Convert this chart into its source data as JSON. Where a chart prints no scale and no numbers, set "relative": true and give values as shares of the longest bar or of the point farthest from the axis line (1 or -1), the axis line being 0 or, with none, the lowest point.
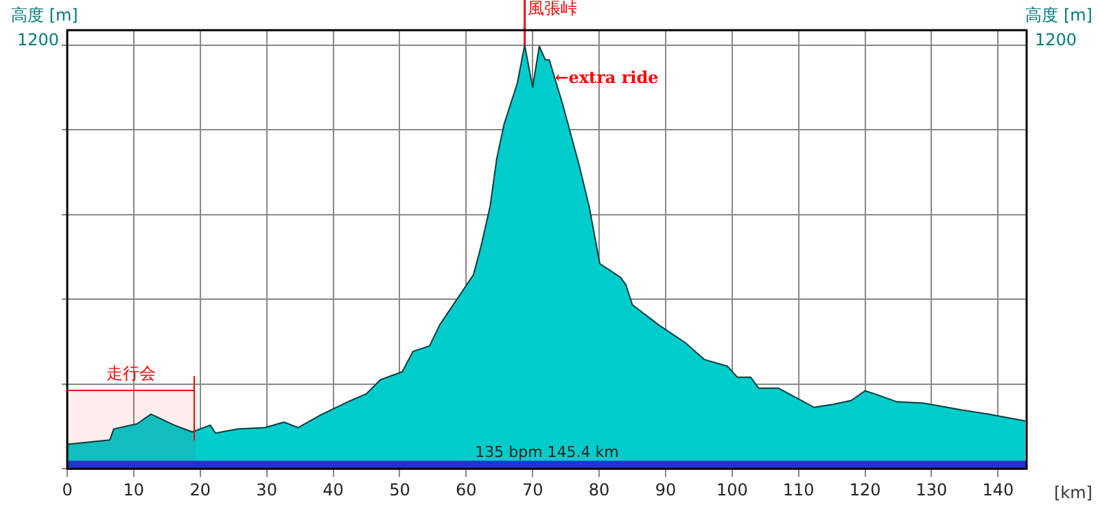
{
  "chart_data": {
    "type": "area",
    "relative": true,
    "ylabel": "高度 [m]",
    "y2label": "高度 [m]",
    "xlabel": "[km]",
    "xlim": [
      0,
      144.3
    ],
    "xticks": [
      0,
      10,
      20,
      30,
      40,
      50,
      60,
      70,
      80,
      90,
      100,
      110,
      120,
      130,
      140
    ],
    "grid": true,
    "legend": false,
    "series": [
      {
        "color": "#00cccc",
        "x": [
          0,
          6.4,
          7.0,
          10.5,
          12.6,
          16.1,
          18.8,
          21.5,
          22.3,
          25.6,
          29.7,
          32.6,
          34.7,
          38.0,
          42.2,
          45.0,
          47.1,
          50.4,
          52.0,
          54.5,
          56.0,
          61.1,
          62.2,
          63.6,
          64.6,
          65.7,
          67.7,
          68.8,
          70.0,
          71.0,
          71.9,
          72.5,
          74.5,
          77.0,
          78.5,
          80.1,
          83.2,
          84.0,
          85.0,
          89.0,
          93.0,
          95.8,
          99.3,
          100.8,
          102.8,
          104.0,
          107.0,
          109.6,
          112.3,
          115.2,
          117.9,
          120.0,
          121.4,
          124.8,
          128.8,
          134.4,
          138.5,
          144.1
        ],
        "values": [
          0.058,
          0.068,
          0.094,
          0.106,
          0.129,
          0.103,
          0.087,
          0.103,
          0.084,
          0.094,
          0.097,
          0.11,
          0.097,
          0.126,
          0.158,
          0.177,
          0.21,
          0.229,
          0.277,
          0.29,
          0.339,
          0.458,
          0.523,
          0.619,
          0.732,
          0.813,
          0.91,
          1,
          0.9,
          0.997,
          0.965,
          0.965,
          0.861,
          0.716,
          0.619,
          0.484,
          0.452,
          0.435,
          0.387,
          0.339,
          0.297,
          0.258,
          0.242,
          0.216,
          0.216,
          0.19,
          0.19,
          0.168,
          0.145,
          0.152,
          0.161,
          0.184,
          0.177,
          0.158,
          0.155,
          0.139,
          0.129,
          0.113
        ]
      }
    ],
    "ref_lines": [
      {
        "axis": "x",
        "value": 68.8,
        "label": "風張峠",
        "color": "#ff0000"
      }
    ],
    "bands": [
      {
        "axis": "x",
        "from": 0,
        "to": 19.3,
        "label": "走行会",
        "color": "#ff0000"
      },
      {
        "axis": "y",
        "from": 0,
        "to": 0.019,
        "label": "135 bpm 145.4 km",
        "color": "#2233cc"
      }
    ],
    "annotations": [
      {
        "text": "←extra ride",
        "x": 72.5,
        "y": 0.965
      },
      "1200",
      "1200"
    ]
  }
}
